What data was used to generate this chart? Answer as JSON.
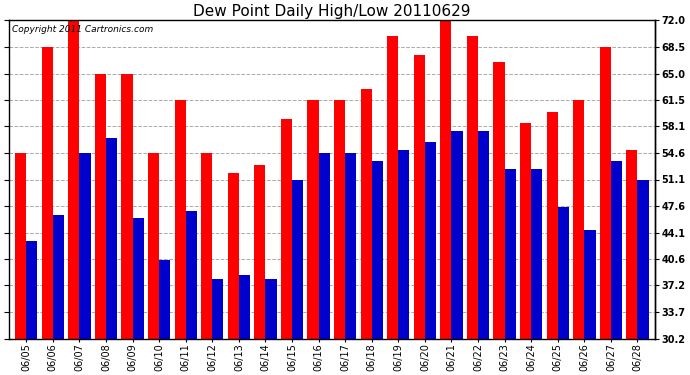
{
  "title": "Dew Point Daily High/Low 20110629",
  "copyright": "Copyright 2011 Cartronics.com",
  "dates": [
    "06/05",
    "06/06",
    "06/07",
    "06/08",
    "06/09",
    "06/10",
    "06/11",
    "06/12",
    "06/13",
    "06/14",
    "06/15",
    "06/16",
    "06/17",
    "06/18",
    "06/19",
    "06/20",
    "06/21",
    "06/22",
    "06/23",
    "06/24",
    "06/25",
    "06/26",
    "06/27",
    "06/28"
  ],
  "highs": [
    54.6,
    68.5,
    72.0,
    65.0,
    65.0,
    54.6,
    61.5,
    54.6,
    52.0,
    53.0,
    59.0,
    61.5,
    61.5,
    63.0,
    70.0,
    67.5,
    72.0,
    70.0,
    66.5,
    58.5,
    60.0,
    61.5,
    68.5,
    55.0
  ],
  "lows": [
    43.0,
    46.5,
    54.6,
    56.5,
    46.0,
    40.5,
    47.0,
    38.0,
    38.5,
    38.0,
    51.0,
    54.6,
    54.6,
    53.5,
    55.0,
    56.0,
    57.5,
    57.5,
    52.5,
    52.5,
    47.5,
    44.5,
    53.5,
    51.0
  ],
  "bar_color_high": "#ff0000",
  "bar_color_low": "#0000cc",
  "background_color": "#ffffff",
  "plot_bg_color": "#ffffff",
  "grid_color": "#aaaaaa",
  "ylim_min": 30.2,
  "ylim_max": 72.0,
  "yticks": [
    30.2,
    33.7,
    37.2,
    40.6,
    44.1,
    47.6,
    51.1,
    54.6,
    58.1,
    61.5,
    65.0,
    68.5,
    72.0
  ],
  "title_fontsize": 11,
  "tick_fontsize": 7,
  "copyright_fontsize": 6.5
}
